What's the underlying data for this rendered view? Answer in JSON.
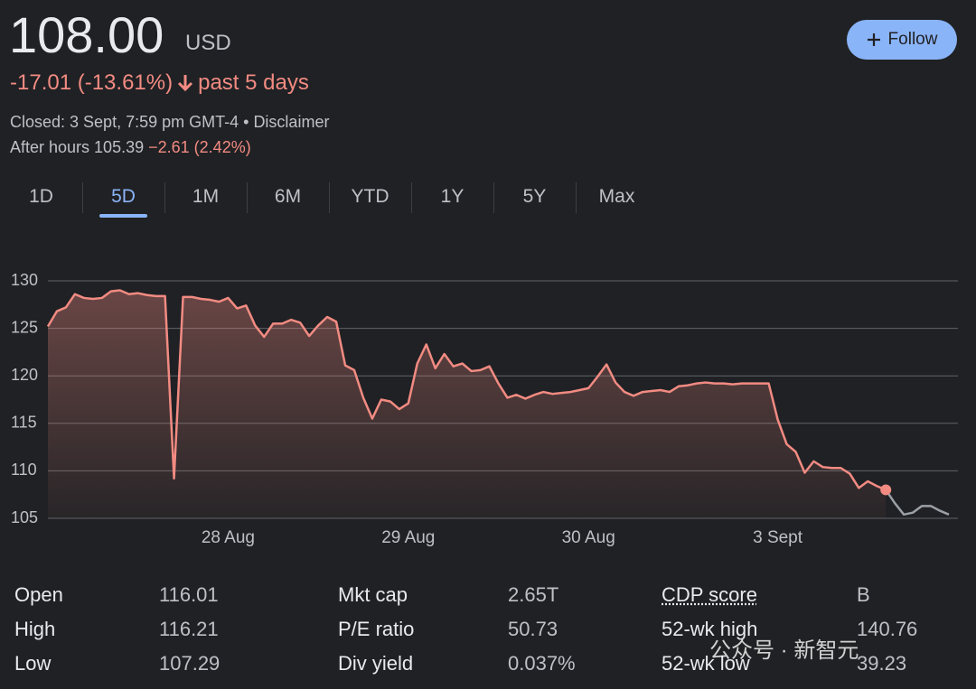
{
  "header": {
    "price": "108.00",
    "currency": "USD",
    "change": "-17.01 (-13.61%)",
    "period": "past 5 days",
    "closed": "Closed: 3 Sept, 7:59 pm GMT-4 •",
    "disclaimer": "Disclaimer",
    "after_hours": "After hours 105.39",
    "after_hours_change": "−2.61 (2.42%)",
    "follow": "Follow"
  },
  "tabs": {
    "items": [
      "1D",
      "5D",
      "1M",
      "6M",
      "YTD",
      "1Y",
      "5Y",
      "Max"
    ],
    "selected": "5D"
  },
  "chart_data": {
    "type": "line",
    "categories": [
      null,
      null,
      null,
      null,
      null,
      null,
      null,
      null,
      null,
      null,
      null,
      null,
      null,
      null,
      null,
      null,
      null,
      null,
      null,
      null,
      "28 Aug",
      null,
      null,
      null,
      null,
      null,
      null,
      null,
      null,
      null,
      null,
      null,
      null,
      null,
      null,
      null,
      null,
      null,
      null,
      null,
      "29 Aug",
      null,
      null,
      null,
      null,
      null,
      null,
      null,
      null,
      null,
      null,
      null,
      null,
      null,
      null,
      null,
      null,
      null,
      null,
      null,
      "30 Aug",
      null,
      null,
      null,
      null,
      null,
      null,
      null,
      null,
      null,
      null,
      null,
      null,
      null,
      null,
      null,
      null,
      null,
      null,
      null,
      null,
      "3 Sept",
      null,
      null,
      null,
      null,
      null,
      null,
      null,
      null,
      null,
      null,
      null,
      null,
      null,
      null,
      null,
      null,
      null,
      null,
      null
    ],
    "series": [
      {
        "color": "#f28b82",
        "values": [
          125.2,
          126.8,
          127.2,
          128.6,
          128.2,
          128.1,
          128.2,
          128.9,
          129.0,
          128.6,
          128.7,
          128.5,
          128.4,
          128.4,
          109.2,
          128.3,
          128.3,
          128.1,
          128.0,
          127.8,
          128.2,
          127.1,
          127.4,
          125.3,
          124.1,
          125.5,
          125.5,
          125.9,
          125.6,
          124.2,
          125.3,
          126.2,
          125.7,
          121.1,
          120.6,
          117.7,
          115.5,
          117.5,
          117.3,
          116.5,
          117.1,
          121.3,
          123.3,
          120.8,
          122.3,
          121.0,
          121.3,
          120.5,
          120.6,
          121.0,
          119.2,
          117.7,
          118.0,
          117.6,
          118.0,
          118.3,
          118.1,
          118.2,
          118.3,
          118.5,
          118.7,
          119.9,
          121.2,
          119.3,
          118.3,
          117.9,
          118.3,
          118.4,
          118.5,
          118.3,
          118.9,
          119.0,
          119.2,
          119.3,
          119.2,
          119.2,
          119.1,
          119.2,
          119.2,
          119.2,
          119.2,
          115.4,
          112.8,
          112.0,
          109.8,
          111.0,
          110.4,
          110.3,
          110.3,
          109.7,
          108.2,
          108.9,
          108.4,
          108.0,
          null,
          null,
          null,
          null,
          null,
          null,
          null
        ]
      },
      {
        "color": "#9aa0a6",
        "values": [
          null,
          null,
          null,
          null,
          null,
          null,
          null,
          null,
          null,
          null,
          null,
          null,
          null,
          null,
          null,
          null,
          null,
          null,
          null,
          null,
          null,
          null,
          null,
          null,
          null,
          null,
          null,
          null,
          null,
          null,
          null,
          null,
          null,
          null,
          null,
          null,
          null,
          null,
          null,
          null,
          null,
          null,
          null,
          null,
          null,
          null,
          null,
          null,
          null,
          null,
          null,
          null,
          null,
          null,
          null,
          null,
          null,
          null,
          null,
          null,
          null,
          null,
          null,
          null,
          null,
          null,
          null,
          null,
          null,
          null,
          null,
          null,
          null,
          null,
          null,
          null,
          null,
          null,
          null,
          null,
          null,
          null,
          null,
          null,
          null,
          null,
          null,
          null,
          null,
          null,
          null,
          null,
          null,
          108.0,
          106.6,
          105.4,
          105.6,
          106.3,
          106.3,
          105.8,
          105.4
        ]
      }
    ],
    "ylim": [
      105,
      130
    ],
    "yticks": [
      105,
      110,
      115,
      120,
      125,
      130
    ],
    "grid": true
  },
  "stats": {
    "rows": [
      [
        "Open",
        "116.01",
        "Mkt cap",
        "2.65T",
        "CDP score",
        "B"
      ],
      [
        "High",
        "116.21",
        "P/E ratio",
        "50.73",
        "52-wk high",
        "140.76"
      ],
      [
        "Low",
        "107.29",
        "Div yield",
        "0.037%",
        "52-wk low",
        "39.23"
      ]
    ]
  },
  "watermark": "公众号 · 新智元"
}
